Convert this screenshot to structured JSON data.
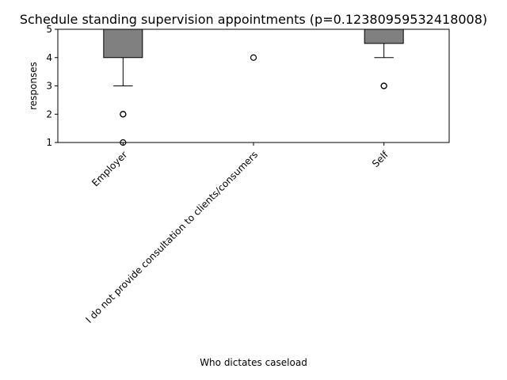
{
  "chart_data": {
    "type": "box",
    "title": "Schedule standing supervision appointments (p=0.12380959532418008)",
    "xlabel": "Who dictates caseload",
    "ylabel": "responses",
    "ylim": [
      1,
      5
    ],
    "yticks": [
      1,
      2,
      3,
      4,
      5
    ],
    "grid": false,
    "box_color": "#808080",
    "groups": [
      {
        "label": "Employer",
        "whisker_low": 3,
        "q1": 4,
        "median": 5,
        "q3": 5,
        "whisker_high": 5,
        "outliers": [
          2,
          2,
          1
        ]
      },
      {
        "label": "I do not provide consultation to clients/consumers",
        "whisker_low": 5,
        "q1": 5,
        "median": 5,
        "q3": 5,
        "whisker_high": 5,
        "outliers": [
          4
        ]
      },
      {
        "label": "Self",
        "whisker_low": 4,
        "q1": 4.5,
        "median": 5,
        "q3": 5,
        "whisker_high": 5,
        "outliers": [
          3,
          3
        ]
      }
    ]
  }
}
